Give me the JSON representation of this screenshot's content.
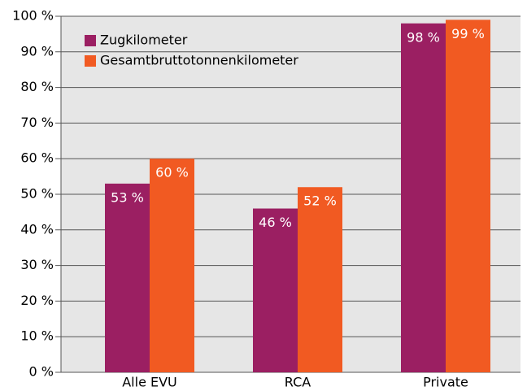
{
  "chart_data": {
    "type": "bar",
    "categories": [
      "Alle EVU",
      "RCA",
      "Private"
    ],
    "series": [
      {
        "name": "Zugkilometer",
        "color": "#9b1f62",
        "values": [
          53,
          46,
          98
        ],
        "value_labels": [
          "53 %",
          "46 %",
          "98 %"
        ]
      },
      {
        "name": "Gesamtbruttotonnenkilometer",
        "color": "#f15a22",
        "values": [
          60,
          52,
          99
        ],
        "value_labels": [
          "60 %",
          "52 %",
          "99 %"
        ]
      }
    ],
    "ylim": [
      0,
      100
    ],
    "yticks": [
      {
        "value": 0,
        "label": "0 %"
      },
      {
        "value": 10,
        "label": "10 %"
      },
      {
        "value": 20,
        "label": "20 %"
      },
      {
        "value": 30,
        "label": "30 %"
      },
      {
        "value": 40,
        "label": "40 %"
      },
      {
        "value": 50,
        "label": "50 %"
      },
      {
        "value": 60,
        "label": "60 %"
      },
      {
        "value": 70,
        "label": "70 %"
      },
      {
        "value": 80,
        "label": "80 %"
      },
      {
        "value": 90,
        "label": "90 %"
      },
      {
        "value": 100,
        "label": "100 %"
      }
    ],
    "grid": true,
    "legend": "upper left"
  }
}
